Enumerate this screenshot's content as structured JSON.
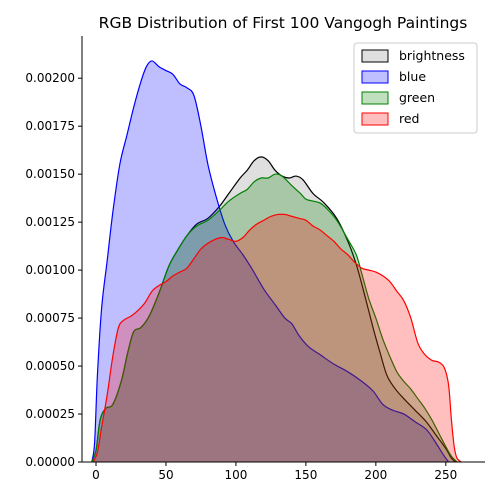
{
  "chart_data": {
    "type": "area",
    "title": "RGB Distribution of First 100 Vangogh Paintings",
    "xlabel": "",
    "ylabel": "",
    "xlim": [
      -10,
      278
    ],
    "ylim": [
      0,
      0.00222
    ],
    "x_ticks": [
      0,
      50,
      100,
      150,
      200,
      250
    ],
    "x_tick_labels": [
      "0",
      "50",
      "100",
      "150",
      "200",
      "250"
    ],
    "y_ticks": [
      0,
      0.00025,
      0.0005,
      0.00075,
      0.001,
      0.00125,
      0.0015,
      0.00175,
      0.002
    ],
    "y_tick_labels": [
      "0.00000",
      "0.00025",
      "0.00050",
      "0.00075",
      "0.00100",
      "0.00125",
      "0.00150",
      "0.00175",
      "0.00200"
    ],
    "grid": false,
    "legend_position": "top-right",
    "series": [
      {
        "name": "brightness",
        "line_color": "#000000",
        "fill_color": "#808080",
        "points": [
          [
            -3,
            0
          ],
          [
            0,
            6e-05
          ],
          [
            3,
            0.00022
          ],
          [
            7,
            0.00028
          ],
          [
            12,
            0.0003
          ],
          [
            18,
            0.00042
          ],
          [
            23,
            0.00058
          ],
          [
            27,
            0.00068
          ],
          [
            32,
            0.0007
          ],
          [
            38,
            0.00076
          ],
          [
            45,
            0.00088
          ],
          [
            52,
            0.00102
          ],
          [
            58,
            0.0011
          ],
          [
            65,
            0.00118
          ],
          [
            72,
            0.00124
          ],
          [
            80,
            0.00127
          ],
          [
            88,
            0.00133
          ],
          [
            95,
            0.0014
          ],
          [
            103,
            0.00148
          ],
          [
            108,
            0.00152
          ],
          [
            113,
            0.00157
          ],
          [
            118,
            0.00159
          ],
          [
            123,
            0.00157
          ],
          [
            128,
            0.00152
          ],
          [
            133,
            0.00149
          ],
          [
            138,
            0.00148
          ],
          [
            143,
            0.00149
          ],
          [
            148,
            0.00147
          ],
          [
            155,
            0.0014
          ],
          [
            163,
            0.00135
          ],
          [
            172,
            0.00127
          ],
          [
            180,
            0.00115
          ],
          [
            186,
            0.00103
          ],
          [
            192,
            0.00087
          ],
          [
            198,
            0.0007
          ],
          [
            203,
            0.00057
          ],
          [
            208,
            0.00045
          ],
          [
            214,
            0.00038
          ],
          [
            220,
            0.00033
          ],
          [
            228,
            0.00027
          ],
          [
            236,
            0.00021
          ],
          [
            243,
            0.00014
          ],
          [
            250,
            7e-05
          ],
          [
            254,
            2e-05
          ],
          [
            257,
            0
          ]
        ]
      },
      {
        "name": "blue",
        "line_color": "#0000ff",
        "fill_color": "#0000ff",
        "points": [
          [
            -3,
            0
          ],
          [
            -1,
            0.0001
          ],
          [
            1,
            0.00045
          ],
          [
            4,
            0.0008
          ],
          [
            8,
            0.00105
          ],
          [
            12,
            0.0013
          ],
          [
            17,
            0.00155
          ],
          [
            22,
            0.0017
          ],
          [
            27,
            0.00185
          ],
          [
            32,
            0.00198
          ],
          [
            36,
            0.00206
          ],
          [
            40,
            0.00209
          ],
          [
            45,
            0.00206
          ],
          [
            50,
            0.00204
          ],
          [
            55,
            0.00202
          ],
          [
            60,
            0.00197
          ],
          [
            65,
            0.00195
          ],
          [
            70,
            0.00191
          ],
          [
            75,
            0.00175
          ],
          [
            80,
            0.00155
          ],
          [
            86,
            0.00138
          ],
          [
            92,
            0.00124
          ],
          [
            98,
            0.00115
          ],
          [
            105,
            0.00108
          ],
          [
            112,
            0.001
          ],
          [
            120,
            0.0009
          ],
          [
            128,
            0.00082
          ],
          [
            135,
            0.00075
          ],
          [
            140,
            0.00072
          ],
          [
            145,
            0.00066
          ],
          [
            152,
            0.0006
          ],
          [
            160,
            0.00056
          ],
          [
            170,
            0.00051
          ],
          [
            180,
            0.00047
          ],
          [
            190,
            0.00042
          ],
          [
            198,
            0.00037
          ],
          [
            205,
            0.0003
          ],
          [
            212,
            0.00027
          ],
          [
            220,
            0.00025
          ],
          [
            228,
            0.00021
          ],
          [
            236,
            0.00017
          ],
          [
            242,
            0.00011
          ],
          [
            248,
            4e-05
          ],
          [
            252,
            0
          ]
        ]
      },
      {
        "name": "green",
        "line_color": "#008000",
        "fill_color": "#008000",
        "points": [
          [
            -3,
            0
          ],
          [
            0,
            6e-05
          ],
          [
            3,
            0.00022
          ],
          [
            7,
            0.00028
          ],
          [
            12,
            0.0003
          ],
          [
            18,
            0.00042
          ],
          [
            23,
            0.00058
          ],
          [
            27,
            0.00068
          ],
          [
            32,
            0.0007
          ],
          [
            38,
            0.00076
          ],
          [
            45,
            0.00088
          ],
          [
            52,
            0.00102
          ],
          [
            58,
            0.0011
          ],
          [
            65,
            0.00118
          ],
          [
            72,
            0.00123
          ],
          [
            80,
            0.00126
          ],
          [
            88,
            0.00131
          ],
          [
            95,
            0.00136
          ],
          [
            103,
            0.0014
          ],
          [
            108,
            0.00142
          ],
          [
            113,
            0.00146
          ],
          [
            118,
            0.00148
          ],
          [
            123,
            0.00148
          ],
          [
            128,
            0.0015
          ],
          [
            133,
            0.00149
          ],
          [
            140,
            0.00144
          ],
          [
            146,
            0.0014
          ],
          [
            150,
            0.00137
          ],
          [
            155,
            0.00136
          ],
          [
            160,
            0.00135
          ],
          [
            165,
            0.00132
          ],
          [
            172,
            0.00126
          ],
          [
            180,
            0.00116
          ],
          [
            186,
            0.00108
          ],
          [
            190,
            0.00098
          ],
          [
            195,
            0.00085
          ],
          [
            200,
            0.00075
          ],
          [
            205,
            0.00064
          ],
          [
            210,
            0.00055
          ],
          [
            215,
            0.00047
          ],
          [
            220,
            0.00042
          ],
          [
            225,
            0.00038
          ],
          [
            230,
            0.00033
          ],
          [
            235,
            0.00028
          ],
          [
            240,
            0.00022
          ],
          [
            245,
            0.00015
          ],
          [
            250,
            8e-05
          ],
          [
            254,
            3e-05
          ],
          [
            258,
            0
          ]
        ]
      },
      {
        "name": "red",
        "line_color": "#ff0000",
        "fill_color": "#ff0000",
        "points": [
          [
            -2,
            0
          ],
          [
            1,
            5e-05
          ],
          [
            4,
            0.00018
          ],
          [
            8,
            0.00035
          ],
          [
            12,
            0.00055
          ],
          [
            16,
            0.0007
          ],
          [
            20,
            0.00074
          ],
          [
            25,
            0.00076
          ],
          [
            30,
            0.00079
          ],
          [
            35,
            0.00083
          ],
          [
            40,
            0.00089
          ],
          [
            45,
            0.00092
          ],
          [
            50,
            0.00094
          ],
          [
            55,
            0.00097
          ],
          [
            60,
            0.00099
          ],
          [
            65,
            0.00101
          ],
          [
            70,
            0.00106
          ],
          [
            75,
            0.00111
          ],
          [
            80,
            0.00114
          ],
          [
            85,
            0.00116
          ],
          [
            90,
            0.00117
          ],
          [
            95,
            0.00116
          ],
          [
            100,
            0.00115
          ],
          [
            105,
            0.00117
          ],
          [
            110,
            0.00121
          ],
          [
            115,
            0.00124
          ],
          [
            120,
            0.00126
          ],
          [
            125,
            0.00128
          ],
          [
            130,
            0.00129
          ],
          [
            135,
            0.00129
          ],
          [
            140,
            0.00128
          ],
          [
            145,
            0.00127
          ],
          [
            150,
            0.00126
          ],
          [
            155,
            0.00123
          ],
          [
            160,
            0.00121
          ],
          [
            165,
            0.00118
          ],
          [
            170,
            0.00115
          ],
          [
            175,
            0.00111
          ],
          [
            180,
            0.00108
          ],
          [
            185,
            0.00104
          ],
          [
            190,
            0.00101
          ],
          [
            195,
            0.001
          ],
          [
            200,
            0.00099
          ],
          [
            205,
            0.00097
          ],
          [
            210,
            0.00094
          ],
          [
            215,
            0.00089
          ],
          [
            220,
            0.00084
          ],
          [
            225,
            0.00075
          ],
          [
            230,
            0.00062
          ],
          [
            235,
            0.00056
          ],
          [
            240,
            0.00053
          ],
          [
            245,
            0.00052
          ],
          [
            249,
            0.00049
          ],
          [
            252,
            0.0004
          ],
          [
            254,
            0.00022
          ],
          [
            256,
            8e-05
          ],
          [
            258,
            2e-05
          ],
          [
            261,
            0
          ]
        ]
      }
    ]
  }
}
